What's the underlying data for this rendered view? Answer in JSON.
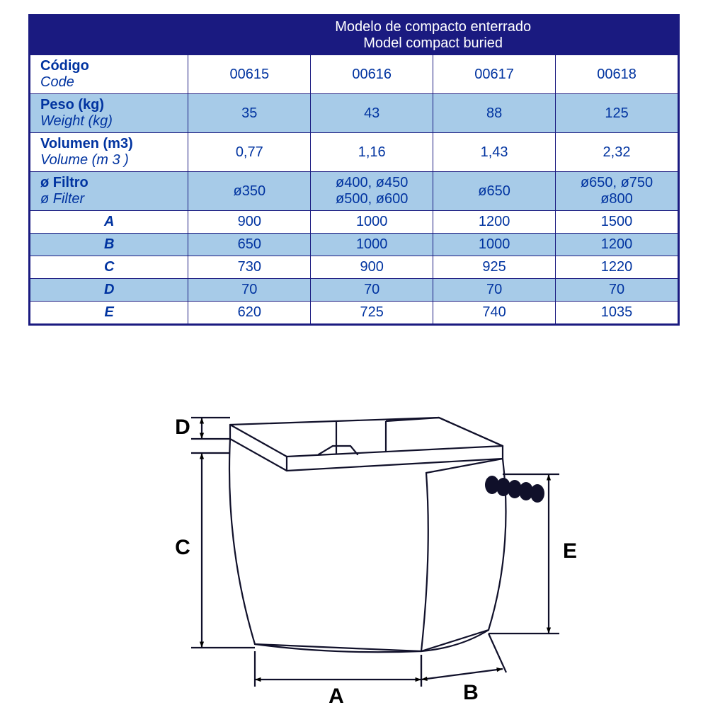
{
  "table": {
    "header": {
      "title_es": "Modelo de compacto enterrado",
      "title_en": "Model compact buried"
    },
    "colors": {
      "border": "#1a1a80",
      "header_bg": "#1a1a80",
      "header_fg": "#ffffff",
      "row_light": "#a7cbe8",
      "row_white": "#ffffff",
      "text": "#0033a0"
    },
    "rows": [
      {
        "label_es": "Código",
        "label_en": "Code",
        "bg": "white",
        "vals": [
          "00615",
          "00616",
          "00617",
          "00618"
        ]
      },
      {
        "label_es": "Peso (kg)",
        "label_en": "Weight (kg)",
        "bg": "light",
        "vals": [
          "35",
          "43",
          "88",
          "125"
        ]
      },
      {
        "label_es": "Volumen (m3)",
        "label_en": "Volume (m 3 )",
        "bg": "white",
        "vals": [
          "0,77",
          "1,16",
          "1,43",
          "2,32"
        ]
      },
      {
        "label_es": "ø Filtro",
        "label_en": "ø  Filter",
        "bg": "light",
        "vals": [
          "ø350",
          "ø400, ø450\nø500, ø600",
          "ø650",
          "ø650, ø750\nø800"
        ]
      }
    ],
    "dims": [
      {
        "letter": "A",
        "bg": "white",
        "vals": [
          "900",
          "1000",
          "1200",
          "1500"
        ]
      },
      {
        "letter": "B",
        "bg": "light",
        "vals": [
          "650",
          "1000",
          "1000",
          "1200"
        ]
      },
      {
        "letter": "C",
        "bg": "white",
        "vals": [
          "730",
          "900",
          "925",
          "1220"
        ]
      },
      {
        "letter": "D",
        "bg": "light",
        "vals": [
          "70",
          "70",
          "70",
          "70"
        ]
      },
      {
        "letter": "E",
        "bg": "white",
        "vals": [
          "620",
          "725",
          "740",
          "1035"
        ]
      }
    ]
  },
  "diagram": {
    "labels": {
      "A": "A",
      "B": "B",
      "C": "C",
      "D": "D",
      "E": "E"
    },
    "stroke": "#10102a",
    "stroke_width": 2.2,
    "font_size": 30,
    "font_weight": "bold"
  }
}
